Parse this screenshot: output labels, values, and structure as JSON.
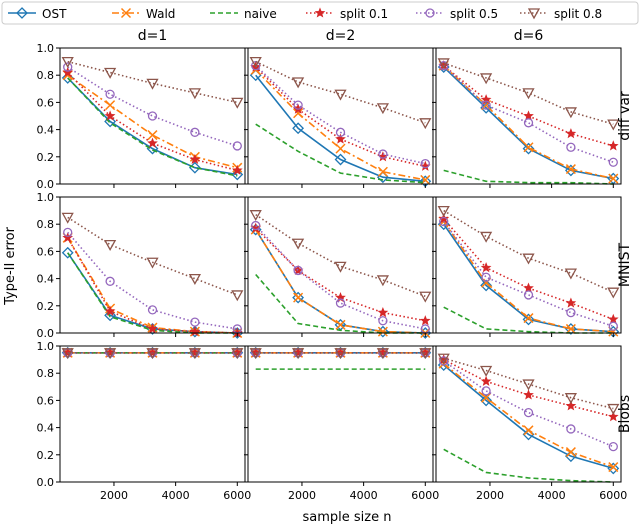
{
  "chart_data": {
    "type": "line",
    "xlabel": "sample size n",
    "ylabel": "Type-II error",
    "column_titles": [
      "d=1",
      "d=2",
      "d=6"
    ],
    "row_titles": [
      "diff var",
      "MNIST",
      "Blobs"
    ],
    "x": [
      500,
      1875,
      3250,
      4625,
      6000
    ],
    "xlim": [
      250,
      6250
    ],
    "ylim": [
      0,
      1
    ],
    "xticks": [
      2000,
      4000,
      6000
    ],
    "yticks": [
      0.0,
      0.2,
      0.4,
      0.6,
      0.8,
      1.0
    ],
    "xtick_labels": [
      "2000",
      "4000",
      "6000"
    ],
    "ytick_labels": [
      "0.0",
      "0.2",
      "0.4",
      "0.6",
      "0.8",
      "1.0"
    ],
    "grid": false,
    "legend_placement": "top, outside the panels",
    "series_styles": [
      {
        "name": "OST",
        "color": "#1f77b4",
        "dash": "",
        "marker": "diamond"
      },
      {
        "name": "Wald",
        "color": "#ff7f0e",
        "dash": "7 3 2 3",
        "marker": "x"
      },
      {
        "name": "naive",
        "color": "#2ca02c",
        "dash": "5 3",
        "marker": "none"
      },
      {
        "name": "split 0.1",
        "color": "#d62728",
        "dash": "1.5 2.5",
        "marker": "star"
      },
      {
        "name": "split 0.5",
        "color": "#9467bd",
        "dash": "1.5 2.5",
        "marker": "circle"
      },
      {
        "name": "split 0.8",
        "color": "#8c564b",
        "dash": "1.5 2.5",
        "marker": "triangle-down"
      }
    ],
    "panels": [
      {
        "row": "diff var",
        "col": "d=1",
        "series": [
          {
            "name": "OST",
            "values": [
              0.78,
              0.46,
              0.26,
              0.12,
              0.07
            ]
          },
          {
            "name": "Wald",
            "values": [
              0.8,
              0.58,
              0.36,
              0.2,
              0.12
            ]
          },
          {
            "name": "naive",
            "values": [
              0.78,
              0.45,
              0.25,
              0.12,
              0.06
            ]
          },
          {
            "name": "split 0.1",
            "values": [
              0.82,
              0.5,
              0.3,
              0.18,
              0.1
            ]
          },
          {
            "name": "split 0.5",
            "values": [
              0.86,
              0.66,
              0.5,
              0.38,
              0.28
            ]
          },
          {
            "name": "split 0.8",
            "values": [
              0.9,
              0.82,
              0.74,
              0.67,
              0.6
            ]
          }
        ]
      },
      {
        "row": "diff var",
        "col": "d=2",
        "series": [
          {
            "name": "OST",
            "values": [
              0.8,
              0.41,
              0.18,
              0.05,
              0.02
            ]
          },
          {
            "name": "Wald",
            "values": [
              0.84,
              0.52,
              0.26,
              0.09,
              0.03
            ]
          },
          {
            "name": "naive",
            "values": [
              0.44,
              0.24,
              0.08,
              0.03,
              0.01
            ]
          },
          {
            "name": "split 0.1",
            "values": [
              0.86,
              0.55,
              0.33,
              0.2,
              0.13
            ]
          },
          {
            "name": "split 0.5",
            "values": [
              0.87,
              0.58,
              0.38,
              0.22,
              0.15
            ]
          },
          {
            "name": "split 0.8",
            "values": [
              0.9,
              0.75,
              0.66,
              0.56,
              0.45
            ]
          }
        ]
      },
      {
        "row": "diff var",
        "col": "d=6",
        "series": [
          {
            "name": "OST",
            "values": [
              0.86,
              0.56,
              0.26,
              0.1,
              0.04
            ]
          },
          {
            "name": "Wald",
            "values": [
              0.87,
              0.58,
              0.27,
              0.11,
              0.04
            ]
          },
          {
            "name": "naive",
            "values": [
              0.1,
              0.02,
              0.01,
              0.01,
              0.0
            ]
          },
          {
            "name": "split 0.1",
            "values": [
              0.87,
              0.62,
              0.5,
              0.37,
              0.28
            ]
          },
          {
            "name": "split 0.5",
            "values": [
              0.87,
              0.58,
              0.45,
              0.27,
              0.16
            ]
          },
          {
            "name": "split 0.8",
            "values": [
              0.89,
              0.78,
              0.67,
              0.53,
              0.44
            ]
          }
        ]
      },
      {
        "row": "MNIST",
        "col": "d=1",
        "series": [
          {
            "name": "OST",
            "values": [
              0.59,
              0.13,
              0.03,
              0.01,
              0.0
            ]
          },
          {
            "name": "Wald",
            "values": [
              0.7,
              0.18,
              0.04,
              0.01,
              0.0
            ]
          },
          {
            "name": "naive",
            "values": [
              0.59,
              0.12,
              0.02,
              0.0,
              0.0
            ]
          },
          {
            "name": "split 0.1",
            "values": [
              0.7,
              0.16,
              0.03,
              0.01,
              0.0
            ]
          },
          {
            "name": "split 0.5",
            "values": [
              0.74,
              0.38,
              0.17,
              0.08,
              0.03
            ]
          },
          {
            "name": "split 0.8",
            "values": [
              0.85,
              0.65,
              0.52,
              0.4,
              0.28
            ]
          }
        ]
      },
      {
        "row": "MNIST",
        "col": "d=2",
        "series": [
          {
            "name": "OST",
            "values": [
              0.76,
              0.26,
              0.06,
              0.01,
              0.0
            ]
          },
          {
            "name": "Wald",
            "values": [
              0.76,
              0.26,
              0.06,
              0.01,
              0.0
            ]
          },
          {
            "name": "naive",
            "values": [
              0.43,
              0.07,
              0.02,
              0.0,
              0.0
            ]
          },
          {
            "name": "split 0.1",
            "values": [
              0.77,
              0.46,
              0.26,
              0.15,
              0.09
            ]
          },
          {
            "name": "split 0.5",
            "values": [
              0.79,
              0.46,
              0.22,
              0.09,
              0.03
            ]
          },
          {
            "name": "split 0.8",
            "values": [
              0.87,
              0.66,
              0.49,
              0.39,
              0.27
            ]
          }
        ]
      },
      {
        "row": "MNIST",
        "col": "d=6",
        "series": [
          {
            "name": "OST",
            "values": [
              0.8,
              0.35,
              0.1,
              0.03,
              0.01
            ]
          },
          {
            "name": "Wald",
            "values": [
              0.82,
              0.37,
              0.11,
              0.03,
              0.01
            ]
          },
          {
            "name": "naive",
            "values": [
              0.19,
              0.03,
              0.01,
              0.0,
              0.0
            ]
          },
          {
            "name": "split 0.1",
            "values": [
              0.84,
              0.48,
              0.33,
              0.22,
              0.1
            ]
          },
          {
            "name": "split 0.5",
            "values": [
              0.82,
              0.41,
              0.28,
              0.15,
              0.05
            ]
          },
          {
            "name": "split 0.8",
            "values": [
              0.9,
              0.71,
              0.55,
              0.44,
              0.3
            ]
          }
        ]
      },
      {
        "row": "Blobs",
        "col": "d=1",
        "series": [
          {
            "name": "OST",
            "values": [
              0.95,
              0.95,
              0.95,
              0.95,
              0.95
            ]
          },
          {
            "name": "Wald",
            "values": [
              0.95,
              0.95,
              0.95,
              0.95,
              0.95
            ]
          },
          {
            "name": "naive",
            "values": [
              0.95,
              0.95,
              0.95,
              0.95,
              0.95
            ]
          },
          {
            "name": "split 0.1",
            "values": [
              0.95,
              0.95,
              0.95,
              0.95,
              0.95
            ]
          },
          {
            "name": "split 0.5",
            "values": [
              0.95,
              0.95,
              0.95,
              0.95,
              0.95
            ]
          },
          {
            "name": "split 0.8",
            "values": [
              0.95,
              0.95,
              0.95,
              0.95,
              0.95
            ]
          }
        ]
      },
      {
        "row": "Blobs",
        "col": "d=2",
        "series": [
          {
            "name": "OST",
            "values": [
              0.95,
              0.95,
              0.95,
              0.95,
              0.95
            ]
          },
          {
            "name": "Wald",
            "values": [
              0.95,
              0.95,
              0.95,
              0.95,
              0.95
            ]
          },
          {
            "name": "naive",
            "values": [
              0.83,
              0.83,
              0.83,
              0.83,
              0.83
            ]
          },
          {
            "name": "split 0.1",
            "values": [
              0.95,
              0.95,
              0.95,
              0.95,
              0.95
            ]
          },
          {
            "name": "split 0.5",
            "values": [
              0.95,
              0.95,
              0.95,
              0.95,
              0.95
            ]
          },
          {
            "name": "split 0.8",
            "values": [
              0.95,
              0.95,
              0.95,
              0.95,
              0.95
            ]
          }
        ]
      },
      {
        "row": "Blobs",
        "col": "d=6",
        "series": [
          {
            "name": "OST",
            "values": [
              0.86,
              0.6,
              0.35,
              0.19,
              0.1
            ]
          },
          {
            "name": "Wald",
            "values": [
              0.87,
              0.62,
              0.38,
              0.22,
              0.11
            ]
          },
          {
            "name": "naive",
            "values": [
              0.24,
              0.07,
              0.03,
              0.01,
              0.0
            ]
          },
          {
            "name": "split 0.1",
            "values": [
              0.9,
              0.74,
              0.64,
              0.56,
              0.48
            ]
          },
          {
            "name": "split 0.5",
            "values": [
              0.89,
              0.67,
              0.51,
              0.39,
              0.26
            ]
          },
          {
            "name": "split 0.8",
            "values": [
              0.91,
              0.82,
              0.72,
              0.62,
              0.54
            ]
          }
        ]
      }
    ]
  }
}
